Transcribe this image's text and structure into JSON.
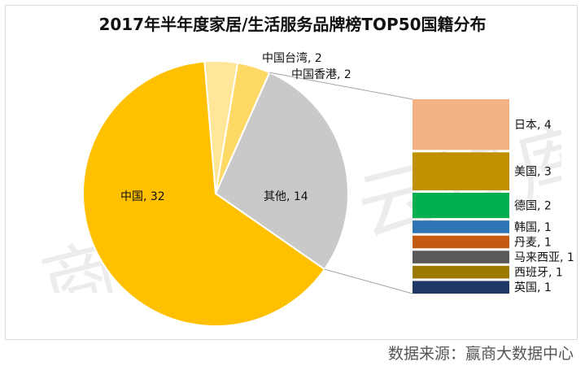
{
  "title": "2017年半年度家居/生活服务品牌榜TOP50国籍分布",
  "watermark": "商业地产云智库",
  "source": "数据来源：赢商大数据中心",
  "chart_data": {
    "type": "bar-of-pie",
    "pie": [
      {
        "name": "中国",
        "value": 32,
        "label": "中国, 32",
        "color": "#FFC000"
      },
      {
        "name": "其他",
        "value": 14,
        "label": "其他, 14",
        "color": "#C9C9C9"
      },
      {
        "name": "中国台湾",
        "value": 2,
        "label": "中国台湾, 2",
        "color": "#FFE699"
      },
      {
        "name": "中国香港",
        "value": 2,
        "label": "中国香港, 2",
        "color": "#FFD966"
      }
    ],
    "breakdown": [
      {
        "name": "日本",
        "value": 4,
        "label": "日本, 4",
        "color": "#F4B183"
      },
      {
        "name": "美国",
        "value": 3,
        "label": "美国, 3",
        "color": "#BF9000"
      },
      {
        "name": "德国",
        "value": 2,
        "label": "德国, 2",
        "color": "#00B050"
      },
      {
        "name": "韩国",
        "value": 1,
        "label": "韩国, 1",
        "color": "#2E75B6"
      },
      {
        "name": "丹麦",
        "value": 1,
        "label": "丹麦, 1",
        "color": "#C55A11"
      },
      {
        "name": "马来西亚",
        "value": 1,
        "label": "马来西亚, 1",
        "color": "#595959"
      },
      {
        "name": "西班牙",
        "value": 1,
        "label": "西班牙, 1",
        "color": "#9C7A00"
      },
      {
        "name": "英国",
        "value": 1,
        "label": "英国, 1",
        "color": "#1F3864"
      }
    ],
    "legend": "none"
  }
}
